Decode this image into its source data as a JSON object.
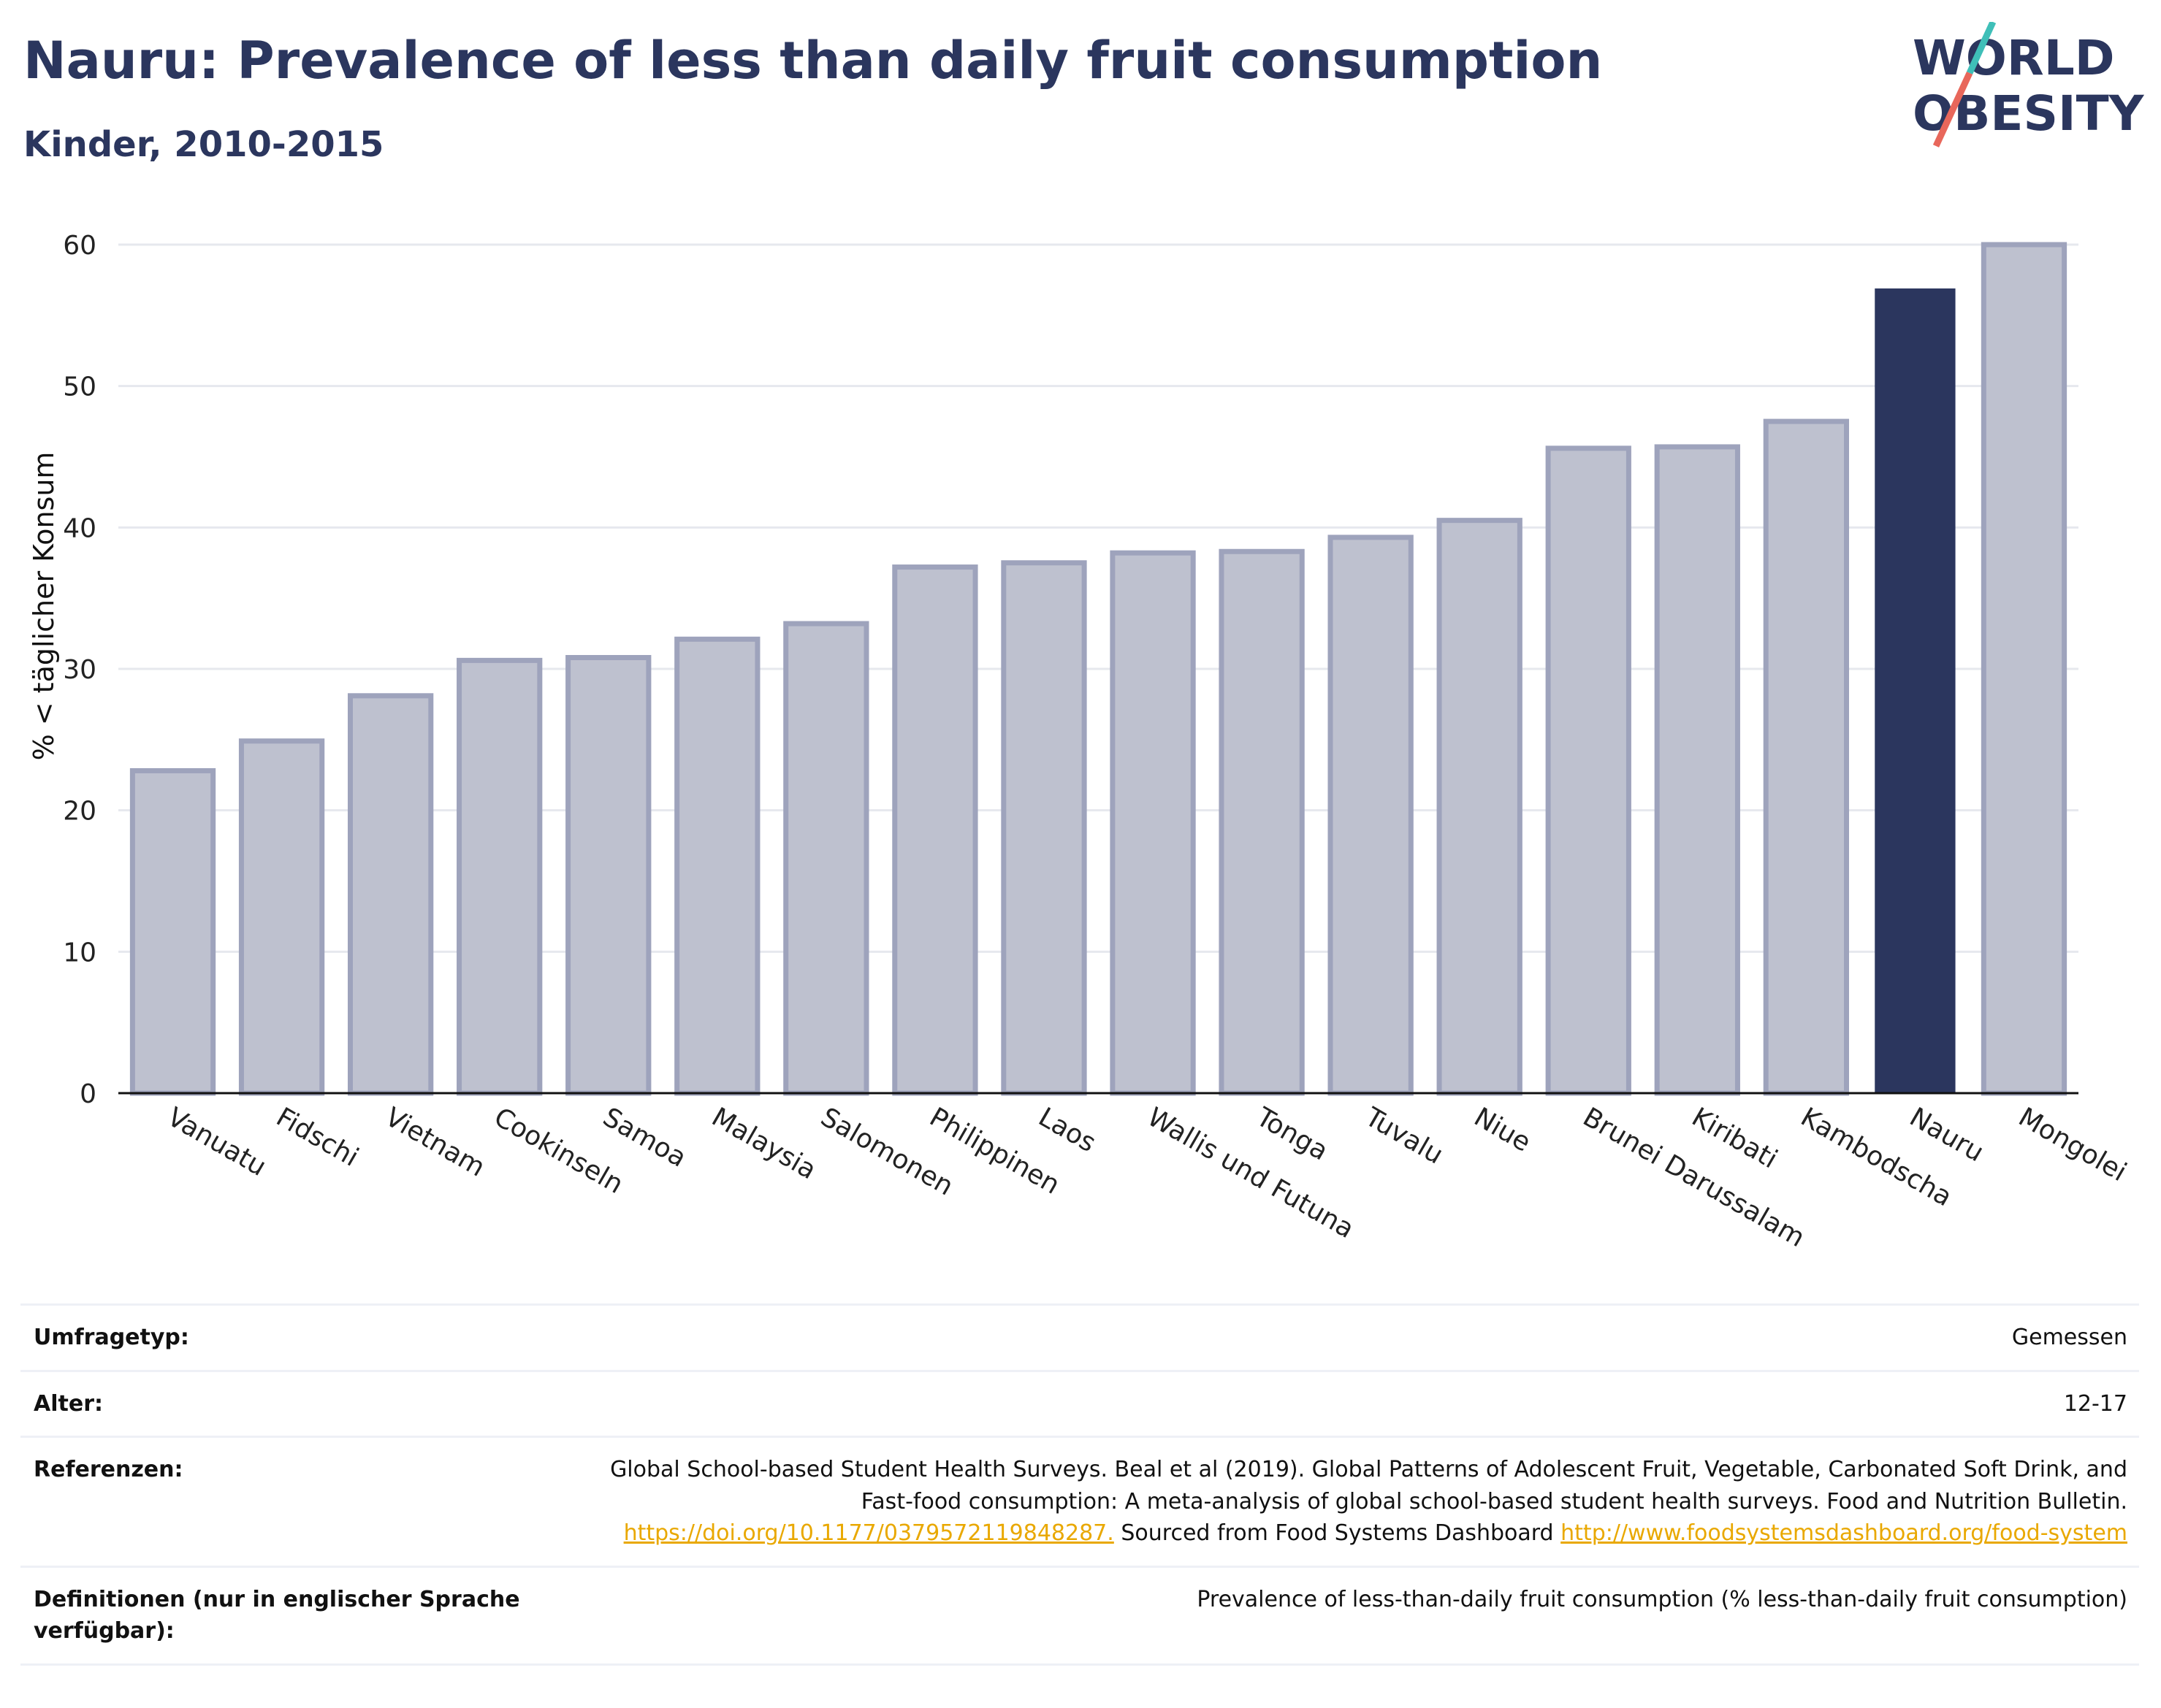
{
  "header": {
    "title": "Nauru: Prevalence of less than daily fruit consumption",
    "subtitle": "Kinder, 2010-2015"
  },
  "logo": {
    "line1": "WORLD",
    "line2": "OBESITY",
    "colors": {
      "text": "#2b365e",
      "slash_top": "#3fbfb8",
      "slash_bottom": "#e8675b"
    }
  },
  "chart_data": {
    "type": "bar",
    "title": "Nauru: Prevalence of less than daily fruit consumption",
    "subtitle": "Kinder, 2010-2015",
    "xlabel": "",
    "ylabel": "% < täglicher Konsum",
    "ylim": [
      0,
      60
    ],
    "yticks": [
      0,
      10,
      20,
      30,
      40,
      50,
      60
    ],
    "grid": true,
    "categories": [
      "Vanuatu",
      "Fidschi",
      "Vietnam",
      "Cookinseln",
      "Samoa",
      "Malaysia",
      "Salomonen",
      "Philippinen",
      "Laos",
      "Wallis und Futuna",
      "Tonga",
      "Tuvalu",
      "Niue",
      "Brunei Darussalam",
      "Kiribati",
      "Kambodscha",
      "Nauru",
      "Mongolei"
    ],
    "values": [
      22.8,
      24.9,
      28.1,
      30.6,
      30.8,
      32.1,
      33.2,
      37.2,
      37.5,
      38.2,
      38.3,
      39.3,
      40.5,
      45.6,
      45.7,
      47.5,
      56.9,
      60.0
    ],
    "highlight": "Nauru",
    "colors": {
      "highlight": "#2b365e",
      "other_fill": "#bec1cf",
      "other_stroke": "#9ea3bc"
    }
  },
  "meta": [
    {
      "label": "Umfragetyp:",
      "value": "Gemessen"
    },
    {
      "label": "Alter:",
      "value": "12-17"
    },
    {
      "label": "Referenzen:",
      "text1": "Global School-based Student Health Surveys. Beal et al (2019). Global Patterns of Adolescent Fruit, Vegetable, Carbonated Soft Drink, and Fast-food consumption: A meta-analysis of global school-based student health surveys. Food and Nutrition Bulletin.",
      "link1": "https://doi.org/10.1177/0379572119848287.",
      "text2": "Sourced from Food Systems Dashboard",
      "link2": "http://www.foodsystemsdashboard.org/food-system"
    },
    {
      "label": "Definitionen (nur in englischer Sprache verfügbar):",
      "value": "Prevalence of less-than-daily fruit consumption (% less-than-daily fruit consumption)"
    }
  ]
}
